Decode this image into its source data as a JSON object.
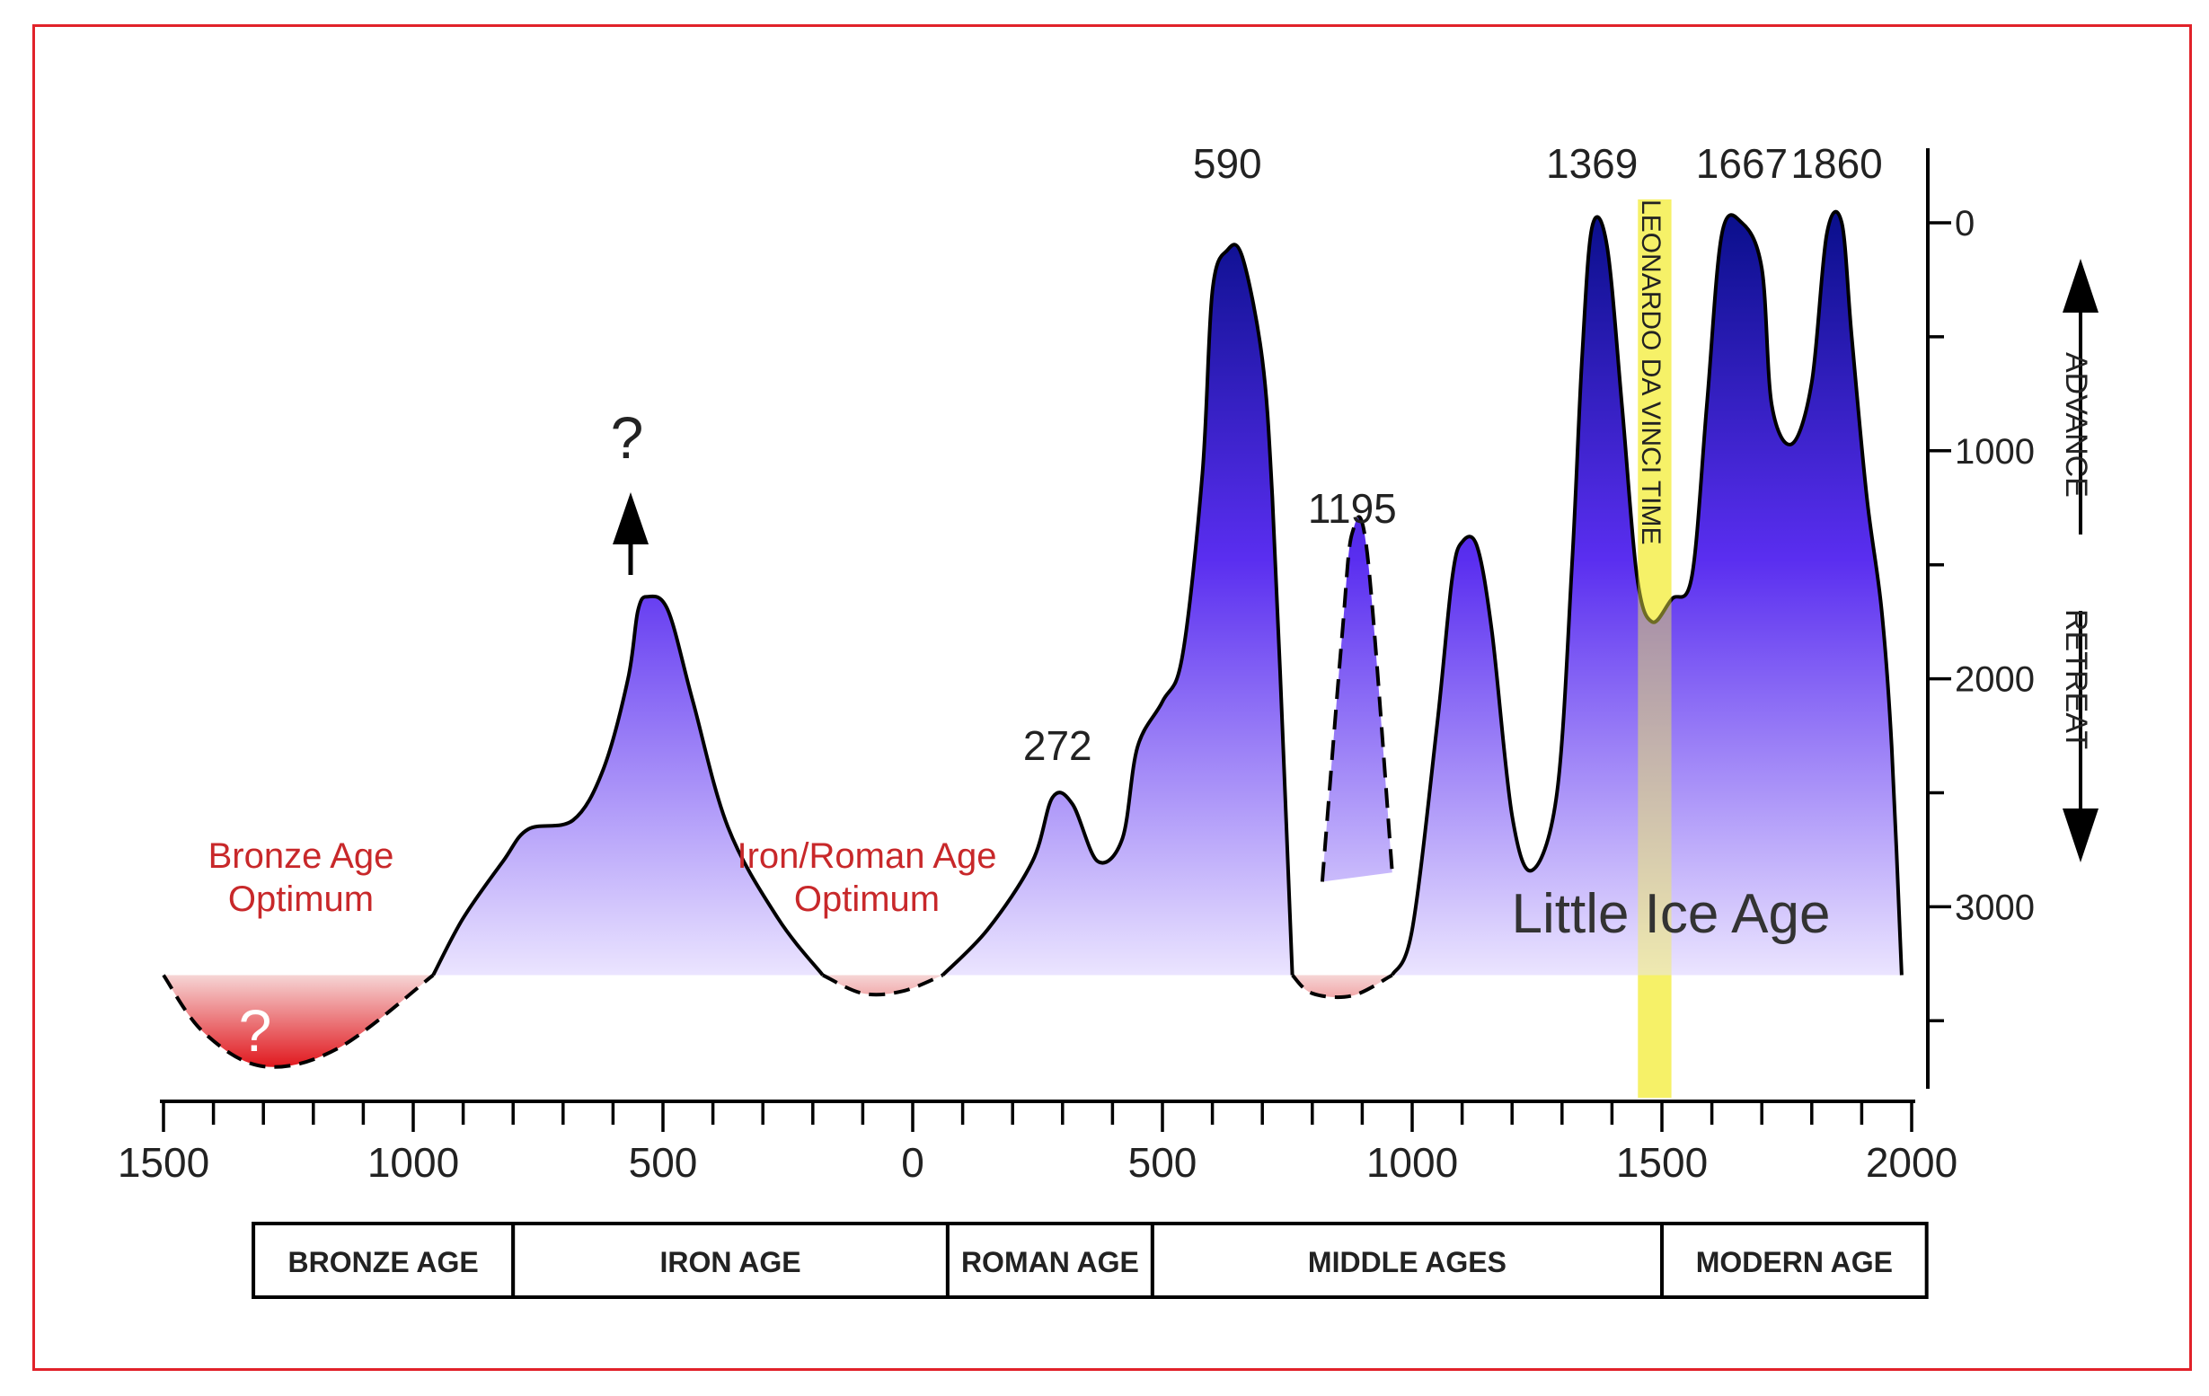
{
  "chart_data": {
    "type": "area",
    "x_axis": {
      "ticks": [
        "1500",
        "1000",
        "500",
        "0",
        "500",
        "1000",
        "1500",
        "2000"
      ],
      "range_years": [
        -1500,
        2000
      ]
    },
    "y_axis": {
      "ticks": [
        "0",
        "1000",
        "2000",
        "3000"
      ],
      "range": [
        0,
        3800
      ],
      "direction_labels": [
        "ADVANCE",
        "RETREAT"
      ]
    },
    "series": [
      {
        "kind": "advance",
        "points": [
          [
            -960,
            3300
          ],
          [
            -900,
            3050
          ],
          [
            -820,
            2800
          ],
          [
            -770,
            2660
          ],
          [
            -680,
            2620
          ],
          [
            -620,
            2400
          ],
          [
            -570,
            2000
          ],
          [
            -550,
            1700
          ],
          [
            -530,
            1640
          ],
          [
            -490,
            1700
          ],
          [
            -440,
            2100
          ],
          [
            -370,
            2650
          ],
          [
            -270,
            3050
          ],
          [
            -180,
            3300
          ]
        ]
      },
      {
        "kind": "advance",
        "points": [
          [
            60,
            3300
          ],
          [
            150,
            3100
          ],
          [
            240,
            2800
          ],
          [
            280,
            2520
          ],
          [
            320,
            2550
          ],
          [
            370,
            2800
          ],
          [
            420,
            2700
          ],
          [
            450,
            2300
          ],
          [
            500,
            2100
          ],
          [
            540,
            1900
          ],
          [
            580,
            1100
          ],
          [
            600,
            300
          ],
          [
            630,
            120
          ],
          [
            660,
            150
          ],
          [
            700,
            600
          ],
          [
            720,
            1200
          ],
          [
            740,
            2200
          ],
          [
            760,
            3300
          ]
        ]
      },
      {
        "kind": "advance_uncertain",
        "points": [
          [
            820,
            2890
          ],
          [
            860,
            1800
          ],
          [
            880,
            1360
          ],
          [
            910,
            1450
          ],
          [
            960,
            2850
          ]
        ]
      },
      {
        "kind": "advance",
        "points": [
          [
            960,
            3300
          ],
          [
            1000,
            3100
          ],
          [
            1050,
            2200
          ],
          [
            1080,
            1560
          ],
          [
            1100,
            1400
          ],
          [
            1130,
            1420
          ],
          [
            1160,
            1800
          ],
          [
            1200,
            2600
          ],
          [
            1240,
            2840
          ],
          [
            1290,
            2500
          ],
          [
            1320,
            1500
          ],
          [
            1340,
            600
          ],
          [
            1360,
            20
          ],
          [
            1390,
            100
          ],
          [
            1420,
            800
          ],
          [
            1450,
            1550
          ],
          [
            1480,
            1750
          ],
          [
            1520,
            1650
          ],
          [
            1560,
            1550
          ],
          [
            1590,
            800
          ],
          [
            1620,
            50
          ],
          [
            1660,
            0
          ],
          [
            1700,
            200
          ],
          [
            1720,
            800
          ],
          [
            1760,
            970
          ],
          [
            1800,
            700
          ],
          [
            1830,
            50
          ],
          [
            1860,
            0
          ],
          [
            1880,
            500
          ],
          [
            1910,
            1200
          ],
          [
            1940,
            1700
          ],
          [
            1960,
            2300
          ],
          [
            1980,
            3300
          ]
        ]
      },
      {
        "kind": "retreat_optimum",
        "points": [
          [
            -1500,
            3300
          ],
          [
            -1420,
            3550
          ],
          [
            -1300,
            3700
          ],
          [
            -1150,
            3620
          ],
          [
            -960,
            3300
          ]
        ]
      },
      {
        "kind": "retreat_optimum",
        "points": [
          [
            -180,
            3300
          ],
          [
            -100,
            3380
          ],
          [
            -20,
            3370
          ],
          [
            60,
            3300
          ]
        ]
      },
      {
        "kind": "retreat_optimum",
        "points": [
          [
            760,
            3300
          ],
          [
            800,
            3380
          ],
          [
            880,
            3390
          ],
          [
            960,
            3300
          ]
        ]
      }
    ],
    "peaks": [
      {
        "label": "590",
        "x": 630
      },
      {
        "label": "272",
        "x": 290
      },
      {
        "label": "1195",
        "x": 880
      },
      {
        "label": "1369",
        "x": 1360
      },
      {
        "label": "1667",
        "x": 1660
      },
      {
        "label": "1860",
        "x": 1850
      }
    ],
    "annotations": {
      "bronze_optimum": [
        "Bronze Age",
        "Optimum"
      ],
      "roman_optimum": [
        "Iron/Roman Age",
        "Optimum"
      ],
      "question_top": "?",
      "question_bottom": "?",
      "little_ice_age": "Little Ice Age",
      "leonardo": "LEONARDO DA VINCI TIME",
      "leonardo_range": [
        1452,
        1519
      ]
    },
    "periods": [
      {
        "label": "BRONZE AGE",
        "from": -1320,
        "to": -800
      },
      {
        "label": "IRON AGE",
        "from": -800,
        "to": 70
      },
      {
        "label": "ROMAN AGE",
        "from": 70,
        "to": 480
      },
      {
        "label": "MIDDLE AGES",
        "from": 480,
        "to": 1500
      },
      {
        "label": "MODERN AGE",
        "from": 1500,
        "to": 2030
      }
    ],
    "colors": {
      "advance_top": "#0a0f8c",
      "advance_mid": "#5a2ef0",
      "advance_bottom": "#ece6ff",
      "retreat_top": "#f6d6d6",
      "retreat_bottom": "#e0141a",
      "leonardo_band": "#f5ef50",
      "label_red": "#c8282a",
      "frame": "#e1222a"
    },
    "legend": "none",
    "grid": false
  }
}
